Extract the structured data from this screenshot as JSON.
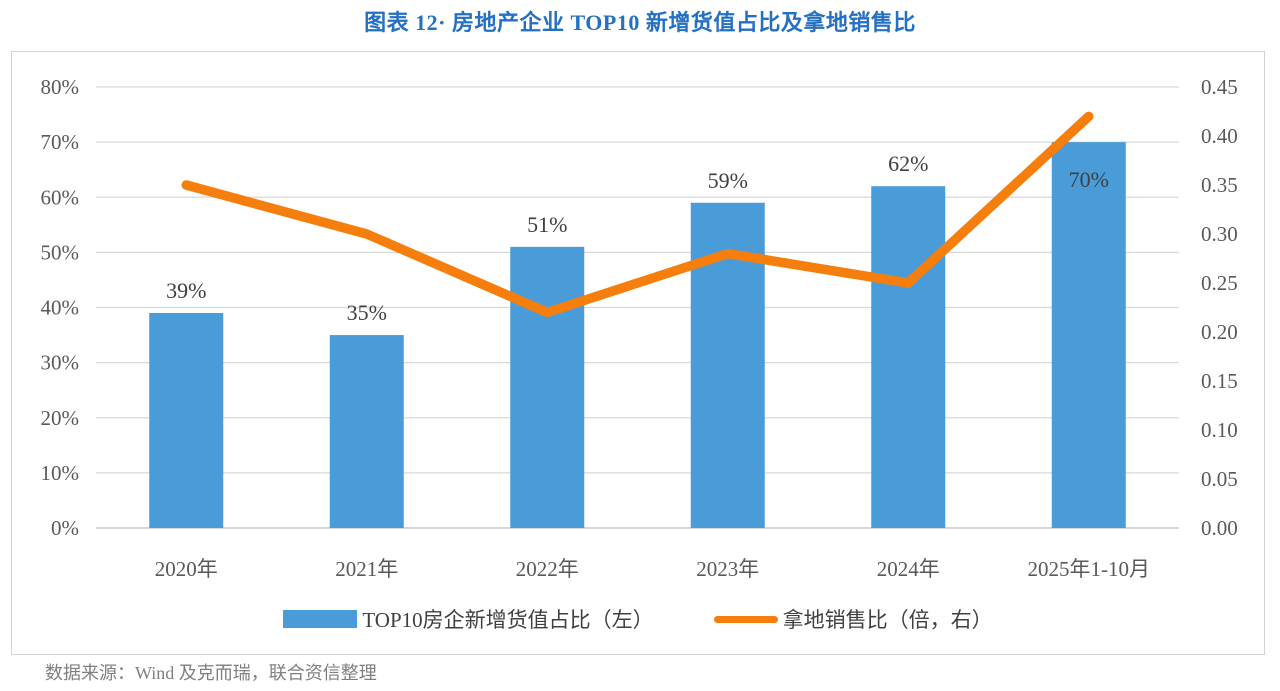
{
  "page": {
    "title": "图表 12· 房地产企业 TOP10 新增货值占比及拿地销售比",
    "source_note": "数据来源：Wind 及克而瑞，联合资信整理"
  },
  "colors": {
    "bar": "#4A9CD8",
    "line": "#F57E0D",
    "title": "#2470C2",
    "grid": "#D9D9D9",
    "baseline": "#BFBFBF",
    "axis_text": "#595959",
    "data_label": "#3F3F3F",
    "legend_text": "#404040",
    "source_text": "#7F7F7F",
    "border": "#D3D3D3"
  },
  "chart_data": {
    "type": "bar+line combo",
    "title": "图表 12· 房地产企业 TOP10 新增货值占比及拿地销售比",
    "categories": [
      "2020年",
      "2021年",
      "2022年",
      "2023年",
      "2024年",
      "2025年1-10月"
    ],
    "series": [
      {
        "name": "TOP10房企新增货值占比（左）",
        "type": "bar",
        "axis": "left",
        "values_pct": [
          39,
          35,
          51,
          59,
          62,
          70
        ],
        "data_labels": [
          "39%",
          "35%",
          "51%",
          "59%",
          "62%",
          "70%"
        ],
        "label_pos": [
          "above",
          "above",
          "above",
          "above",
          "above",
          "inside"
        ]
      },
      {
        "name": "拿地销售比（倍，右）",
        "type": "line",
        "axis": "right",
        "values": [
          0.35,
          0.3,
          0.22,
          0.28,
          0.25,
          0.42
        ]
      }
    ],
    "left_axis": {
      "min": 0,
      "max": 80,
      "ticks_top_to_bottom": [
        "80%",
        "70%",
        "60%",
        "50%",
        "40%",
        "30%",
        "20%",
        "10%",
        "0%"
      ]
    },
    "right_axis": {
      "min": 0,
      "max": 0.45,
      "ticks_top_to_bottom": [
        "0.45",
        "0.40",
        "0.35",
        "0.30",
        "0.25",
        "0.20",
        "0.15",
        "0.10",
        "0.05",
        "0.00"
      ]
    },
    "grid": true,
    "legend_position": "bottom",
    "legend": [
      {
        "label": "TOP10房企新增货值占比（左）",
        "swatch": "bar"
      },
      {
        "label": "拿地销售比（倍，右）",
        "swatch": "line"
      }
    ]
  }
}
